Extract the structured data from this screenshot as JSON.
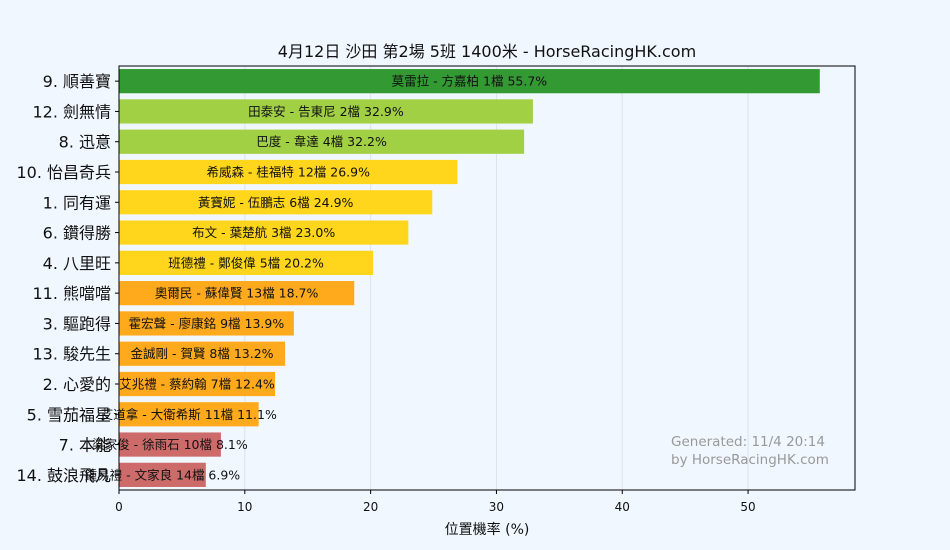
{
  "chart_data": {
    "type": "bar",
    "orientation": "horizontal",
    "title": "4月12日  沙田  第2場  5班  1400米 - HorseRacingHK.com",
    "xlabel": "位置機率 (%)",
    "ylabel": "",
    "xlim": [
      0,
      58.5
    ],
    "xticks": [
      "0",
      "10",
      "20",
      "30",
      "40",
      "50"
    ],
    "grid": "vertical",
    "colors": {
      "top": "#339933",
      "high": "#a1d044",
      "mid": "#ffd61c",
      "low": "#ffaa1c",
      "bottom": "#cd6b6b"
    },
    "rows": [
      {
        "horse": "9. 順善寶",
        "label": "莫雷拉 - 方嘉柏 1檔  55.7%",
        "value": 55.7,
        "tier": "top"
      },
      {
        "horse": "12. 劍無情",
        "label": "田泰安 - 告東尼 2檔  32.9%",
        "value": 32.9,
        "tier": "high"
      },
      {
        "horse": "8. 迅意",
        "label": "巴度 - 韋達 4檔  32.2%",
        "value": 32.2,
        "tier": "high"
      },
      {
        "horse": "10. 怡昌奇兵",
        "label": "希威森 - 桂福特 12檔  26.9%",
        "value": 26.9,
        "tier": "mid"
      },
      {
        "horse": "1. 同有運",
        "label": "黃寶妮 - 伍鵬志 6檔  24.9%",
        "value": 24.9,
        "tier": "mid"
      },
      {
        "horse": "6. 鑽得勝",
        "label": "布文 - 葉楚航 3檔  23.0%",
        "value": 23.0,
        "tier": "mid"
      },
      {
        "horse": "4. 八里旺",
        "label": "班德禮 - 鄭俊偉 5檔  20.2%",
        "value": 20.2,
        "tier": "mid"
      },
      {
        "horse": "11. 熊噹噹",
        "label": "奧爾民 - 蘇偉賢 13檔  18.7%",
        "value": 18.7,
        "tier": "low"
      },
      {
        "horse": "3. 驅跑得",
        "label": "霍宏聲 - 廖康銘 9檔  13.9%",
        "value": 13.9,
        "tier": "low"
      },
      {
        "horse": "13. 駿先生",
        "label": "金誠剛 - 賀賢 8檔  13.2%",
        "value": 13.2,
        "tier": "low"
      },
      {
        "horse": "2. 心愛的",
        "label": "艾兆禮 - 蔡約翰 7檔  12.4%",
        "value": 12.4,
        "tier": "low"
      },
      {
        "horse": "5. 雪茄福星",
        "label": "艾道拿 - 大衛希斯 11檔  11.1%",
        "value": 11.1,
        "tier": "low"
      },
      {
        "horse": "7. 本能",
        "label": "梁家俊 - 徐雨石 10檔  8.1%",
        "value": 8.1,
        "tier": "bottom"
      },
      {
        "horse": "14. 鼓浪飛凡",
        "label": "鍾易禮 - 文家良 14檔  6.9%",
        "value": 6.9,
        "tier": "bottom"
      }
    ],
    "watermark": [
      "Generated: 11/4 20:14",
      "by HorseRacingHK.com"
    ]
  }
}
